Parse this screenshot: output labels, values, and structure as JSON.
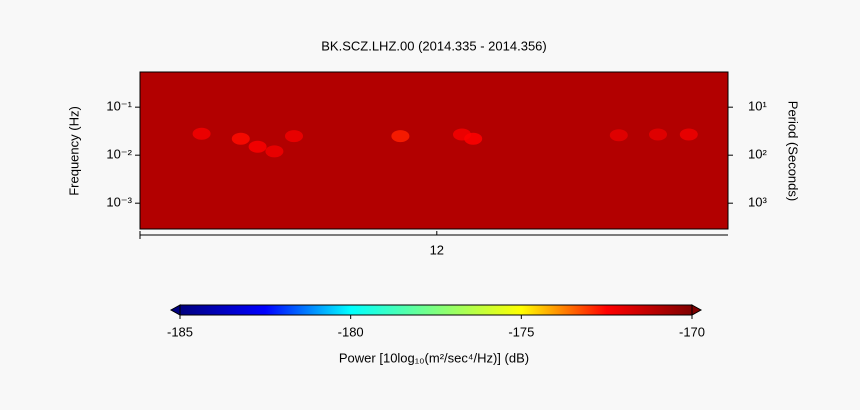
{
  "chart_data": {
    "type": "spectrogram",
    "title": "BK.SCZ.LHZ.00 (2014.335 - 2014.356)",
    "ylabel": "Frequency (Hz)",
    "y2label": "Period (Seconds)",
    "xlim": [
      335,
      356
    ],
    "xticks": [
      {
        "value": 345.6,
        "label": "12"
      }
    ],
    "ylim": [
      0.00029,
      0.54
    ],
    "yticks": [
      {
        "value": 0.1,
        "label": "10⁻¹"
      },
      {
        "value": 0.01,
        "label": "10⁻²"
      },
      {
        "value": 0.001,
        "label": "10⁻³"
      }
    ],
    "y2lim": [
      3450,
      1.85
    ],
    "y2ticks": [
      {
        "value": 10,
        "label": "10¹"
      },
      {
        "value": 100,
        "label": "10²"
      },
      {
        "value": 1000,
        "label": "10³"
      }
    ],
    "log_scale": true,
    "background_value": -171,
    "patches": [
      {
        "x": 337.2,
        "y": 0.028,
        "value": -172.3
      },
      {
        "x": 338.6,
        "y": 0.022,
        "value": -172.6
      },
      {
        "x": 339.2,
        "y": 0.015,
        "value": -172.4
      },
      {
        "x": 339.8,
        "y": 0.012,
        "value": -172.2
      },
      {
        "x": 340.5,
        "y": 0.025,
        "value": -172.2
      },
      {
        "x": 344.3,
        "y": 0.025,
        "value": -172.8
      },
      {
        "x": 346.5,
        "y": 0.027,
        "value": -172.3
      },
      {
        "x": 346.9,
        "y": 0.022,
        "value": -172.5
      },
      {
        "x": 352.1,
        "y": 0.026,
        "value": -172.0
      },
      {
        "x": 353.5,
        "y": 0.027,
        "value": -172.0
      },
      {
        "x": 354.6,
        "y": 0.027,
        "value": -172.2
      }
    ],
    "colorbar": {
      "label": "Power [10log₁₀(m²/sec⁴/Hz)] (dB)",
      "lim": [
        -185,
        -170
      ],
      "ticks": [
        -185,
        -180,
        -175,
        -170
      ],
      "colormap": [
        "#00007f",
        "#0000ff",
        "#00ffff",
        "#7fff7f",
        "#ffff00",
        "#ff0000",
        "#7f0000"
      ]
    }
  }
}
